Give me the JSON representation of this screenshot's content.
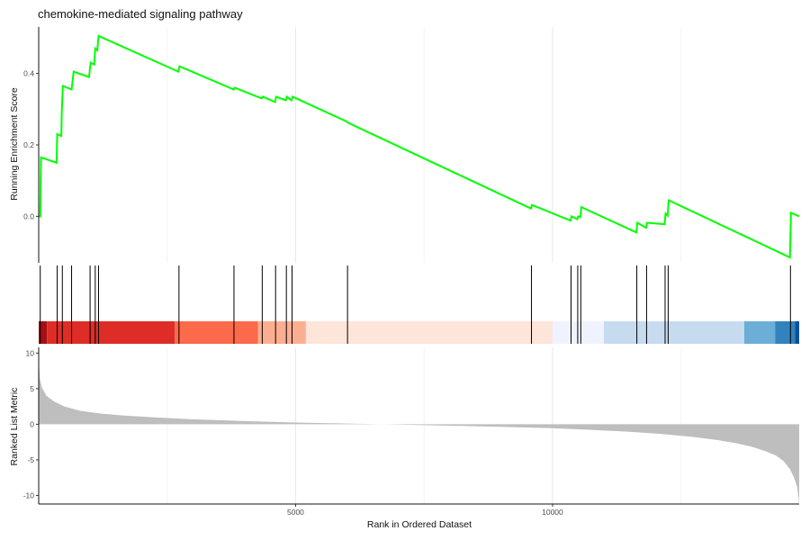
{
  "chart_data": {
    "type": "line",
    "title": "chemokine-mediated signaling pathway",
    "xlabel": "Rank in Ordered Dataset",
    "grid": "vertical only",
    "x_range": [
      0,
      14800
    ],
    "x_ticks": [
      5000,
      10000
    ],
    "panels": {
      "enrichment": {
        "ylabel": "Running Enrichment Score",
        "ylim": [
          -0.13,
          0.53
        ],
        "y_ticks": [
          0.0,
          0.2,
          0.4
        ],
        "line_color": "#00ff00",
        "series": [
          {
            "x": [
              0,
              30,
              45,
              350,
              360,
              440,
              450,
              470,
              640,
              680,
              980,
              1010,
              1080,
              1100,
              1140,
              1165,
              2720,
              2740,
              3795,
              3815,
              4340,
              4360,
              4600,
              4620,
              4810,
              4830,
              4920,
              4940,
              6000,
              6020,
              9580,
              9600,
              10350,
              10370,
              10480,
              10500,
              10540,
              10560,
              11630,
              11650,
              11820,
              11840,
              12180,
              12200,
              12240,
              12260,
              14620,
              14640,
              14800
            ],
            "y": [
              0.0,
              0.0,
              0.165,
              0.15,
              0.23,
              0.225,
              0.295,
              0.365,
              0.355,
              0.405,
              0.39,
              0.43,
              0.425,
              0.47,
              0.465,
              0.505,
              0.405,
              0.42,
              0.355,
              0.36,
              0.33,
              0.335,
              0.32,
              0.335,
              0.325,
              0.335,
              0.325,
              0.335,
              0.265,
              0.262,
              0.022,
              0.032,
              -0.012,
              0.0,
              -0.008,
              0.0,
              -0.002,
              0.026,
              -0.045,
              -0.018,
              -0.032,
              -0.018,
              -0.022,
              0.008,
              0.002,
              0.045,
              -0.115,
              0.01,
              0.0
            ]
          }
        ]
      },
      "hits": {
        "gene_ranks": [
          30,
          360,
          460,
          640,
          1000,
          1100,
          1165,
          2730,
          3800,
          4350,
          4610,
          4820,
          4930,
          6010,
          9590,
          10360,
          10490,
          10550,
          11640,
          11830,
          12190,
          12250,
          14630
        ]
      },
      "heat_band": {
        "segments": [
          {
            "start": 0,
            "end": 160,
            "color": "#a50f15"
          },
          {
            "start": 160,
            "end": 2650,
            "color": "#de2d26"
          },
          {
            "start": 2650,
            "end": 4270,
            "color": "#fb6a4a"
          },
          {
            "start": 4270,
            "end": 5200,
            "color": "#fcae91"
          },
          {
            "start": 5200,
            "end": 10000,
            "color": "#fee5d9"
          },
          {
            "start": 10000,
            "end": 11000,
            "color": "#eff3ff"
          },
          {
            "start": 11000,
            "end": 13730,
            "color": "#c6dbef"
          },
          {
            "start": 13730,
            "end": 14330,
            "color": "#6baed6"
          },
          {
            "start": 14330,
            "end": 14720,
            "color": "#3182bd"
          },
          {
            "start": 14720,
            "end": 14800,
            "color": "#08519c"
          }
        ]
      },
      "ranked_metric": {
        "ylabel": "Ranked List Metric",
        "ylim": [
          -11.2,
          10.8
        ],
        "y_ticks": [
          10,
          5,
          0,
          -5,
          -10
        ],
        "fill_color": "#bebebe",
        "x": [
          0,
          20,
          60,
          150,
          300,
          500,
          800,
          1200,
          1700,
          2300,
          3000,
          4000,
          5000,
          6000,
          7000,
          8000,
          9000,
          10000,
          10800,
          11500,
          12100,
          12700,
          13200,
          13600,
          13900,
          14150,
          14350,
          14500,
          14620,
          14700,
          14760,
          14800
        ],
        "y": [
          9.5,
          6.5,
          5.2,
          4.0,
          3.2,
          2.5,
          1.9,
          1.5,
          1.2,
          0.95,
          0.7,
          0.45,
          0.25,
          0.1,
          -0.05,
          -0.2,
          -0.35,
          -0.55,
          -0.8,
          -1.05,
          -1.35,
          -1.75,
          -2.2,
          -2.7,
          -3.2,
          -3.8,
          -4.4,
          -5.2,
          -6.3,
          -7.5,
          -8.8,
          -11.0
        ]
      }
    }
  }
}
